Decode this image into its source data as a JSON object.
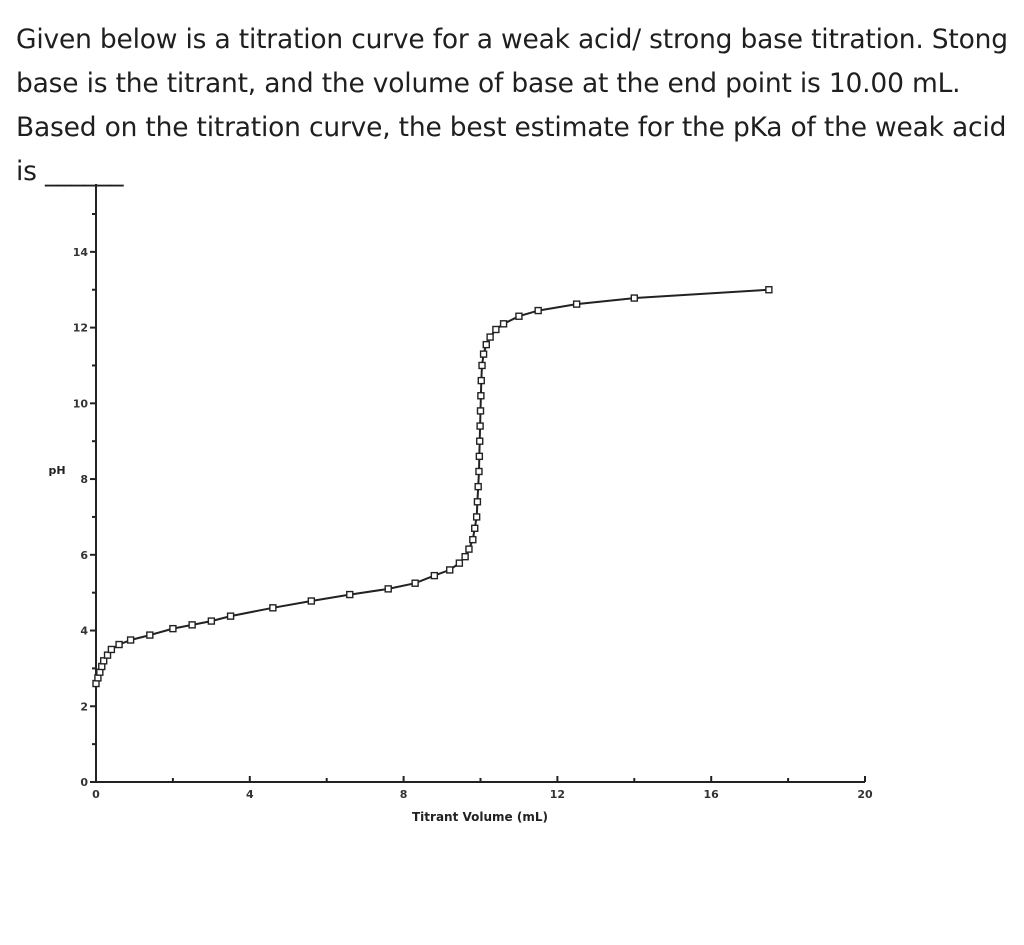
{
  "question": {
    "text": "Given below is a titration curve for a weak acid/ strong base titration. Stong base is the titrant, and the volume of base at the end point is 10.00 mL. Based on the titration curve, the best estimate for the pKa of the weak acid is ______"
  },
  "chart_data": {
    "type": "line",
    "title": "",
    "xlabel": "Titrant Volume (mL)",
    "ylabel": "pH",
    "xlim": [
      0,
      20
    ],
    "ylim": [
      0,
      15
    ],
    "x_ticks": [
      0,
      4,
      8,
      12,
      16,
      20
    ],
    "y_ticks": [
      0,
      2,
      4,
      6,
      8,
      10,
      12,
      14
    ],
    "grid": false,
    "marker": "square",
    "series": [
      {
        "points": [
          [
            0.0,
            2.6
          ],
          [
            0.05,
            2.75
          ],
          [
            0.1,
            2.9
          ],
          [
            0.15,
            3.05
          ],
          [
            0.2,
            3.2
          ],
          [
            0.3,
            3.35
          ],
          [
            0.4,
            3.5
          ],
          [
            0.6,
            3.63
          ],
          [
            0.9,
            3.75
          ],
          [
            1.4,
            3.88
          ],
          [
            2.0,
            4.05
          ],
          [
            2.5,
            4.15
          ],
          [
            3.0,
            4.25
          ],
          [
            3.5,
            4.38
          ],
          [
            4.6,
            4.6
          ],
          [
            5.6,
            4.78
          ],
          [
            6.6,
            4.95
          ],
          [
            7.6,
            5.1
          ],
          [
            8.3,
            5.25
          ],
          [
            8.8,
            5.45
          ],
          [
            9.2,
            5.6
          ],
          [
            9.45,
            5.78
          ],
          [
            9.6,
            5.95
          ],
          [
            9.7,
            6.15
          ],
          [
            9.8,
            6.4
          ],
          [
            9.85,
            6.7
          ],
          [
            9.9,
            7.0
          ],
          [
            9.92,
            7.4
          ],
          [
            9.94,
            7.8
          ],
          [
            9.96,
            8.2
          ],
          [
            9.97,
            8.6
          ],
          [
            9.98,
            9.0
          ],
          [
            9.99,
            9.4
          ],
          [
            10.0,
            9.8
          ],
          [
            10.01,
            10.2
          ],
          [
            10.02,
            10.6
          ],
          [
            10.04,
            11.0
          ],
          [
            10.08,
            11.3
          ],
          [
            10.15,
            11.55
          ],
          [
            10.25,
            11.75
          ],
          [
            10.4,
            11.95
          ],
          [
            10.6,
            12.1
          ],
          [
            11.0,
            12.3
          ],
          [
            11.5,
            12.45
          ],
          [
            12.5,
            12.62
          ],
          [
            14.0,
            12.78
          ],
          [
            17.5,
            13.0
          ]
        ]
      }
    ]
  }
}
